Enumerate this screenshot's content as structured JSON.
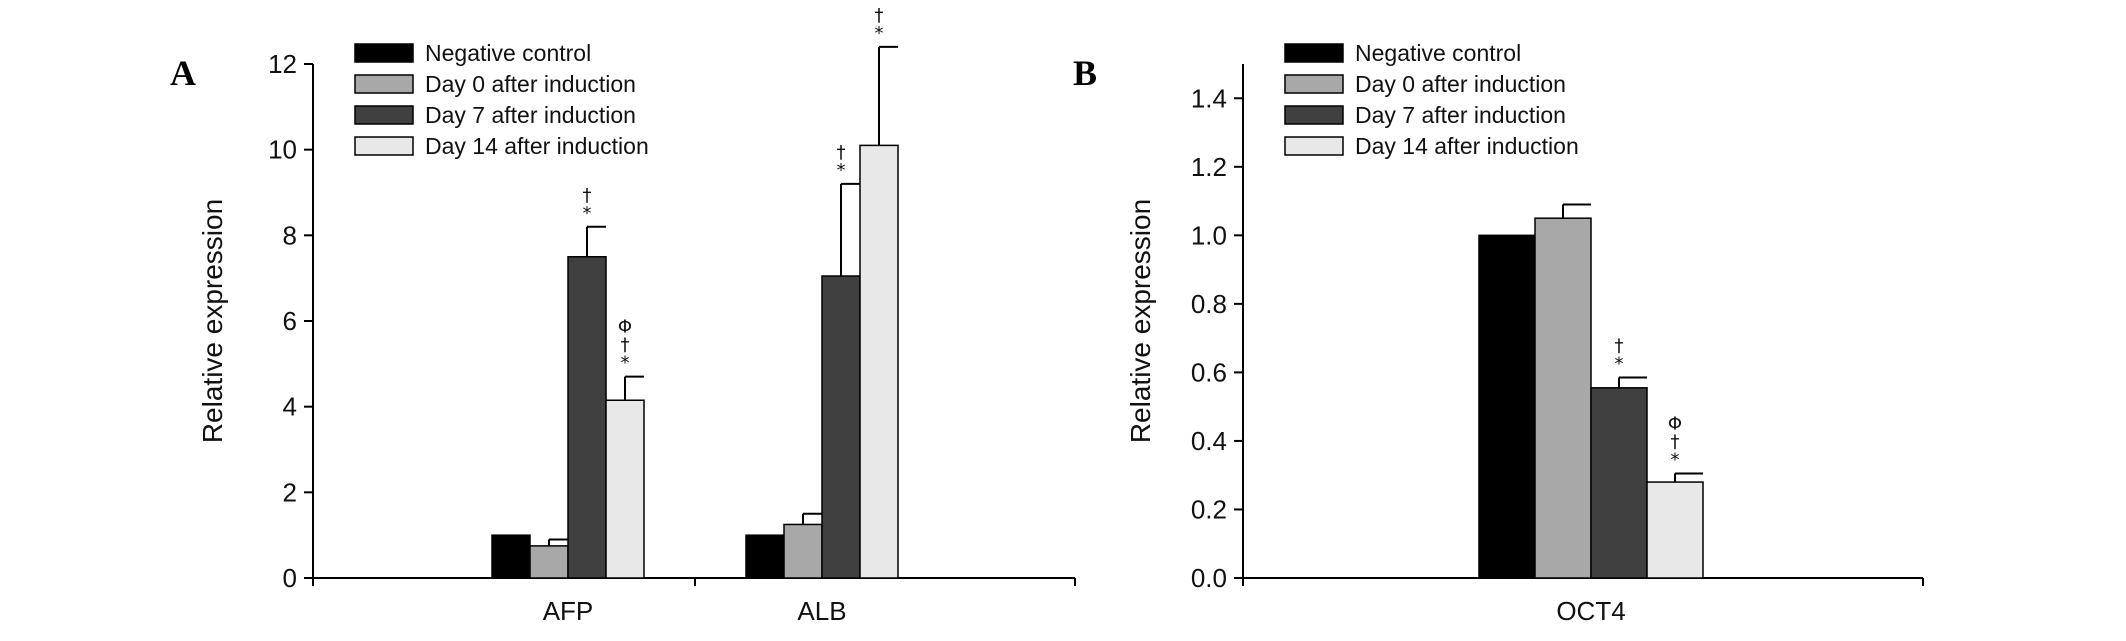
{
  "chart_data": [
    {
      "panel_label": "A",
      "type": "bar",
      "ylabel": "Relative expression",
      "ylim": [
        0,
        12
      ],
      "yticks": [
        "0",
        "2",
        "4",
        "6",
        "8",
        "10",
        "12"
      ],
      "categories": [
        "AFP",
        "ALB"
      ],
      "legend_position": "top-left",
      "series": [
        {
          "name": "Negative control",
          "color": "#000000",
          "values": [
            1.0,
            1.0
          ],
          "errors": [
            0,
            0
          ]
        },
        {
          "name": "Day 0 after induction",
          "color": "#a8a8a8",
          "values": [
            0.75,
            1.25
          ],
          "errors": [
            0.15,
            0.25
          ]
        },
        {
          "name": "Day 7 after induction",
          "color": "#404040",
          "values": [
            7.5,
            7.05
          ],
          "errors": [
            0.7,
            2.15
          ]
        },
        {
          "name": "Day 14 after induction",
          "color": "#e8e8e8",
          "values": [
            4.15,
            10.1
          ],
          "errors": [
            0.55,
            2.3
          ]
        }
      ],
      "annotations": [
        {
          "category": "AFP",
          "series": 2,
          "lines": [
            "†",
            "*"
          ]
        },
        {
          "category": "AFP",
          "series": 3,
          "lines": [
            "Φ",
            "†",
            "*"
          ]
        },
        {
          "category": "ALB",
          "series": 2,
          "lines": [
            "†",
            "*"
          ]
        },
        {
          "category": "ALB",
          "series": 3,
          "lines": [
            "†",
            "*"
          ]
        }
      ]
    },
    {
      "panel_label": "B",
      "type": "bar",
      "ylabel": "Relative expression",
      "ylim": [
        0,
        1.5
      ],
      "yticks": [
        "0.0",
        "0.2",
        "0.4",
        "0.6",
        "0.8",
        "1.0",
        "1.2",
        "1.4"
      ],
      "categories": [
        "OCT4"
      ],
      "legend_position": "top-left",
      "series": [
        {
          "name": "Negative control",
          "color": "#000000",
          "values": [
            1.0
          ],
          "errors": [
            0
          ]
        },
        {
          "name": "Day 0 after induction",
          "color": "#a8a8a8",
          "values": [
            1.05
          ],
          "errors": [
            0.04
          ]
        },
        {
          "name": "Day 7 after induction",
          "color": "#404040",
          "values": [
            0.555
          ],
          "errors": [
            0.03
          ]
        },
        {
          "name": "Day 14 after induction",
          "color": "#e8e8e8",
          "values": [
            0.28
          ],
          "errors": [
            0.025
          ]
        }
      ],
      "annotations": [
        {
          "category": "OCT4",
          "series": 2,
          "lines": [
            "†",
            "*"
          ]
        },
        {
          "category": "OCT4",
          "series": 3,
          "lines": [
            "Φ",
            "†",
            "*"
          ]
        }
      ]
    }
  ]
}
